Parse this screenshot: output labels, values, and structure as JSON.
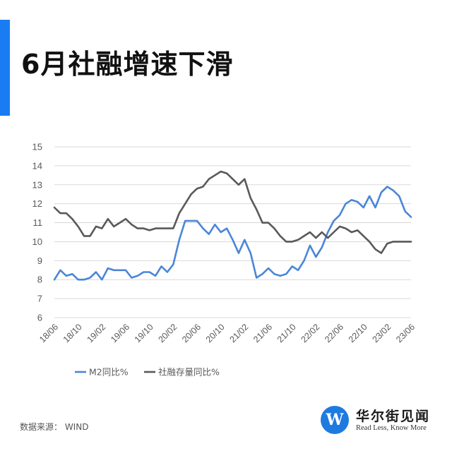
{
  "page": {
    "title": "6月社融增速下滑",
    "source": "数据来源： WIND",
    "logo": {
      "mark": "W",
      "name": "华尔街见闻",
      "slogan": "Read Less, Know More"
    }
  },
  "colors": {
    "accent": "#1a7cf2",
    "m2": "#4a86d8",
    "social_financing": "#595959",
    "grid": "#d9d9d9"
  },
  "chart_data": {
    "type": "line",
    "title": "6月社融增速下滑",
    "xlabel": "",
    "ylabel": "",
    "ylim": [
      6,
      15
    ],
    "yticks": [
      6,
      7,
      8,
      9,
      10,
      11,
      12,
      13,
      14,
      15
    ],
    "grid": true,
    "legend_position": "bottom",
    "x": [
      "18/06",
      "18/07",
      "18/08",
      "18/09",
      "18/10",
      "18/11",
      "18/12",
      "19/01",
      "19/02",
      "19/03",
      "19/04",
      "19/05",
      "19/06",
      "19/07",
      "19/08",
      "19/09",
      "19/10",
      "19/11",
      "19/12",
      "20/01",
      "20/02",
      "20/03",
      "20/04",
      "20/05",
      "20/06",
      "20/07",
      "20/08",
      "20/09",
      "20/10",
      "20/11",
      "20/12",
      "21/01",
      "21/02",
      "21/03",
      "21/04",
      "21/05",
      "21/06",
      "21/07",
      "21/08",
      "21/09",
      "21/10",
      "21/11",
      "21/12",
      "22/01",
      "22/02",
      "22/03",
      "22/04",
      "22/05",
      "22/06",
      "22/07",
      "22/08",
      "22/09",
      "22/10",
      "22/11",
      "22/12",
      "23/01",
      "23/02",
      "23/03",
      "23/04",
      "23/05",
      "23/06"
    ],
    "xticks": [
      "18/06",
      "18/10",
      "19/02",
      "19/06",
      "19/10",
      "20/02",
      "20/06",
      "20/10",
      "21/02",
      "21/06",
      "21/10",
      "22/02",
      "22/06",
      "22/10",
      "23/02",
      "23/06"
    ],
    "series": [
      {
        "name": "M2同比%",
        "color": "#4a86d8",
        "values": [
          8.0,
          8.5,
          8.2,
          8.3,
          8.0,
          8.0,
          8.1,
          8.4,
          8.0,
          8.6,
          8.5,
          8.5,
          8.5,
          8.1,
          8.2,
          8.4,
          8.4,
          8.2,
          8.7,
          8.4,
          8.8,
          10.1,
          11.1,
          11.1,
          11.1,
          10.7,
          10.4,
          10.9,
          10.5,
          10.7,
          10.1,
          9.4,
          10.1,
          9.4,
          8.1,
          8.3,
          8.6,
          8.3,
          8.2,
          8.3,
          8.7,
          8.5,
          9.0,
          9.8,
          9.2,
          9.7,
          10.5,
          11.1,
          11.4,
          12.0,
          12.2,
          12.1,
          11.8,
          12.4,
          11.8,
          12.6,
          12.9,
          12.7,
          12.4,
          11.6,
          11.3
        ]
      },
      {
        "name": "社融存量同比%",
        "color": "#595959",
        "values": [
          11.8,
          11.5,
          11.5,
          11.2,
          10.8,
          10.3,
          10.3,
          10.8,
          10.7,
          11.2,
          10.8,
          11.0,
          11.2,
          10.9,
          10.7,
          10.7,
          10.6,
          10.7,
          10.7,
          10.7,
          10.7,
          11.5,
          12.0,
          12.5,
          12.8,
          12.9,
          13.3,
          13.5,
          13.7,
          13.6,
          13.3,
          13.0,
          13.3,
          12.3,
          11.7,
          11.0,
          11.0,
          10.7,
          10.3,
          10.0,
          10.0,
          10.1,
          10.3,
          10.5,
          10.2,
          10.5,
          10.2,
          10.5,
          10.8,
          10.7,
          10.5,
          10.6,
          10.3,
          10.0,
          9.6,
          9.4,
          9.9,
          10.0,
          10.0,
          10.0,
          10.0
        ]
      }
    ]
  }
}
